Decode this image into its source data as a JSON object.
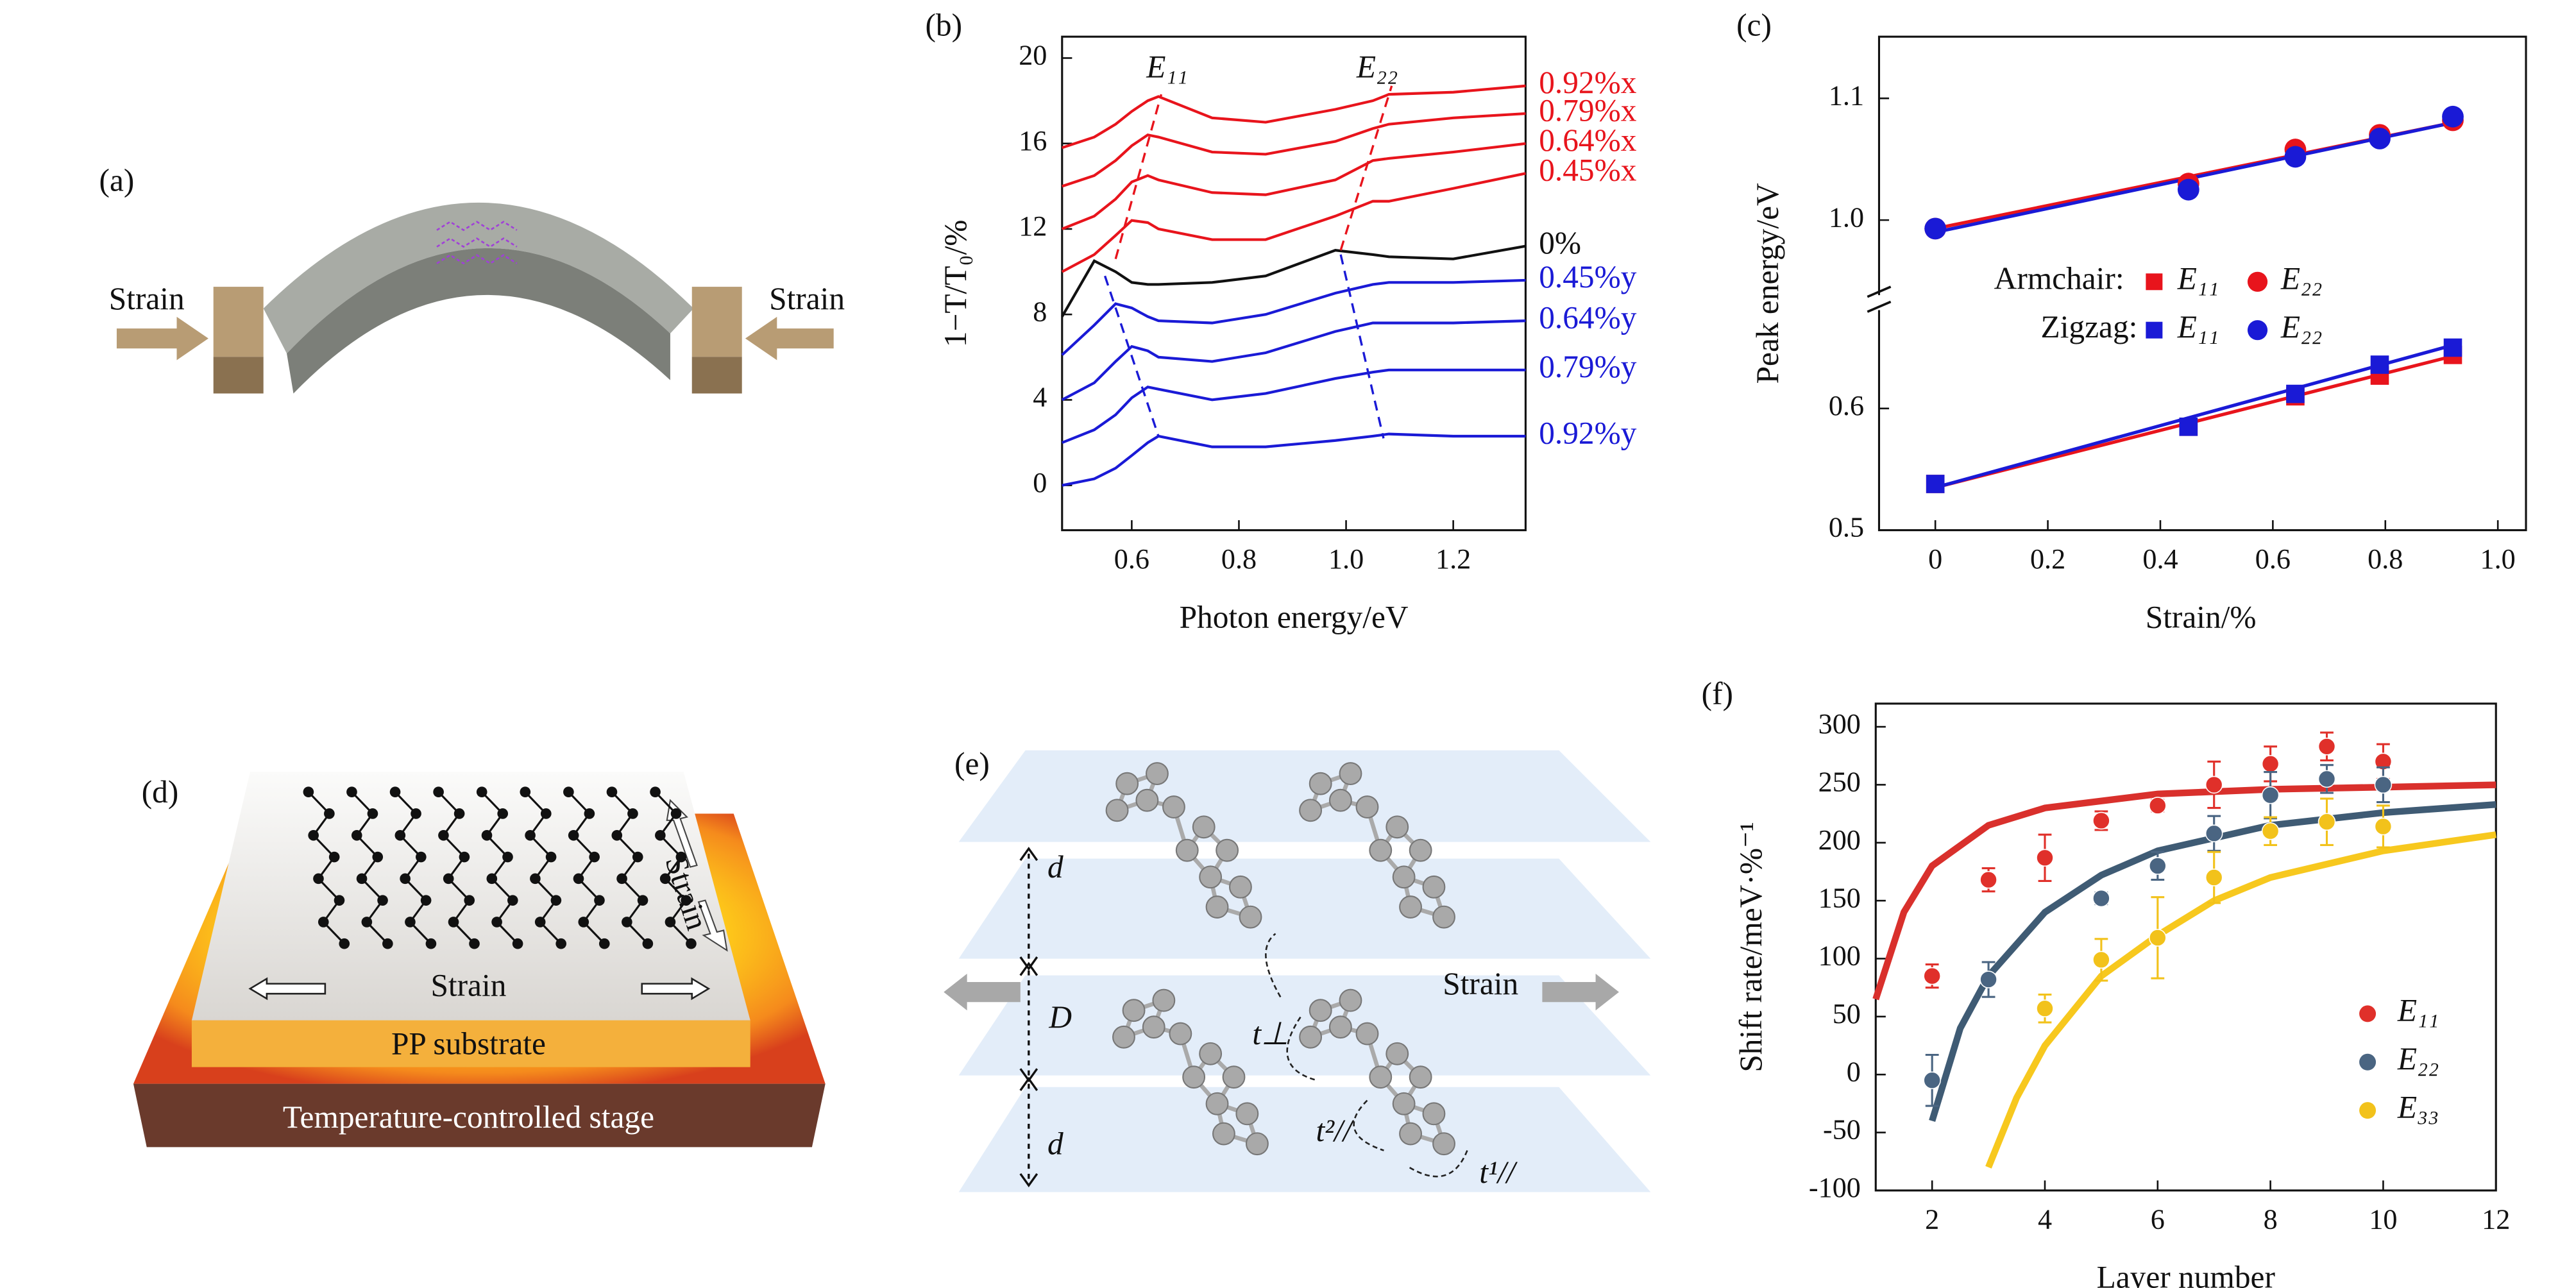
{
  "figure": {
    "panels": {
      "a": {
        "label": "(a)",
        "strain_left": "Strain",
        "strain_right": "Strain"
      },
      "d": {
        "label": "(d)",
        "strain_vertical": "Strain",
        "strain_horizontal": "Strain",
        "substrate": "PP substrate",
        "stage": "Temperature-controlled stage"
      },
      "e": {
        "label": "(e)",
        "d_top": "d",
        "D": "D",
        "d_bottom": "d",
        "t_perp": "t⊥",
        "strain": "Strain",
        "t2": "t²//",
        "t1": "t¹//"
      }
    }
  },
  "chart_data": [
    {
      "type": "line",
      "panel_label": "(b)",
      "xlabel": "Photon energy/eV",
      "ylabel": "1−T/T₀/%",
      "annotations": [
        "E₁₁",
        "E₂₂"
      ],
      "x": [
        0.47,
        0.53,
        0.57,
        0.6,
        0.63,
        0.65,
        0.75,
        0.85,
        0.98,
        1.05,
        1.08,
        1.2,
        1.335
      ],
      "series": [
        {
          "name": "0.92%x",
          "color": "#e8141c",
          "values": [
            15.8,
            16.3,
            16.9,
            17.5,
            18.0,
            18.2,
            17.2,
            17.0,
            17.6,
            18.0,
            18.3,
            18.4,
            18.7
          ]
        },
        {
          "name": "0.79%x",
          "color": "#e8141c",
          "values": [
            14.0,
            14.5,
            15.2,
            15.9,
            16.4,
            16.3,
            15.6,
            15.5,
            16.1,
            16.7,
            16.9,
            17.2,
            17.4
          ]
        },
        {
          "name": "0.64%x",
          "color": "#e8141c",
          "values": [
            12.0,
            12.6,
            13.4,
            14.2,
            14.5,
            14.3,
            13.7,
            13.6,
            14.3,
            15.2,
            15.3,
            15.6,
            16.0
          ]
        },
        {
          "name": "0.45%x",
          "color": "#e8141c",
          "values": [
            10.0,
            10.8,
            11.7,
            12.4,
            12.3,
            12.0,
            11.5,
            11.5,
            12.6,
            13.3,
            13.3,
            13.9,
            14.6
          ]
        },
        {
          "name": "0%",
          "color": "#111111",
          "values": [
            7.9,
            10.5,
            10.0,
            9.5,
            9.4,
            9.4,
            9.5,
            9.8,
            11.0,
            10.8,
            10.7,
            10.6,
            11.2
          ]
        },
        {
          "name": "0.45%y",
          "color": "#1a1ad6",
          "values": [
            6.1,
            7.5,
            8.5,
            8.3,
            7.9,
            7.7,
            7.6,
            8.0,
            9.0,
            9.4,
            9.5,
            9.5,
            9.6
          ]
        },
        {
          "name": "0.64%y",
          "color": "#1a1ad6",
          "values": [
            4.0,
            4.8,
            5.8,
            6.5,
            6.3,
            6.0,
            5.8,
            6.2,
            7.2,
            7.6,
            7.6,
            7.6,
            7.7
          ]
        },
        {
          "name": "0.79%y",
          "color": "#1a1ad6",
          "values": [
            2.0,
            2.6,
            3.3,
            4.1,
            4.6,
            4.5,
            4.0,
            4.3,
            5.0,
            5.3,
            5.4,
            5.4,
            5.4
          ]
        },
        {
          "name": "0.92%y",
          "color": "#1a1ad6",
          "values": [
            0,
            0.3,
            0.8,
            1.4,
            2.0,
            2.3,
            1.8,
            1.8,
            2.1,
            2.3,
            2.4,
            2.3,
            2.3
          ]
        }
      ],
      "peak_guides": [
        {
          "color": "#e8141c",
          "x": [
            0.57,
            0.655
          ],
          "y": [
            10.6,
            18.3
          ]
        },
        {
          "color": "#1a1ad6",
          "x": [
            0.55,
            0.65
          ],
          "y": [
            9.8,
            2.3
          ]
        },
        {
          "color": "#e8141c",
          "x": [
            0.99,
            1.085
          ],
          "y": [
            11.0,
            18.7
          ]
        },
        {
          "color": "#1a1ad6",
          "x": [
            0.99,
            1.07
          ],
          "y": [
            10.8,
            2.2
          ]
        }
      ],
      "xlim": [
        0.47,
        1.335
      ],
      "ylim": [
        -2.1,
        21
      ],
      "xticks": [
        0.6,
        0.8,
        {
          "value": 1,
          "label": "1.0"
        },
        1.2
      ],
      "yticks": [
        0,
        4,
        8,
        12,
        16,
        20
      ]
    },
    {
      "type": "scatter",
      "panel_label": "(c)",
      "xlabel": "Strain/%",
      "ylabel": "Peak energy/eV",
      "legend_groups": [
        "Armchair:",
        "Zigzag:"
      ],
      "x": [
        0,
        0.45,
        0.64,
        0.79,
        0.92
      ],
      "series": [
        {
          "name": "E₁₁",
          "group": 0,
          "marker": "square",
          "color": "#e8141c",
          "values": [
            0.538,
            0.585,
            0.61,
            0.627,
            0.644
          ]
        },
        {
          "name": "E₂₂",
          "group": 0,
          "marker": "circle",
          "color": "#e8141c",
          "values": [
            0.993,
            1.03,
            1.058,
            1.07,
            1.082
          ]
        },
        {
          "name": "E₁₁",
          "group": 1,
          "marker": "square",
          "color": "#1a1ad6",
          "values": [
            0.538,
            0.585,
            0.612,
            0.636,
            0.65
          ]
        },
        {
          "name": "E₂₂",
          "group": 1,
          "marker": "circle",
          "color": "#1a1ad6",
          "values": [
            0.993,
            1.025,
            1.052,
            1.067,
            1.085
          ]
        }
      ],
      "fits": [
        {
          "color": "#e8141c",
          "x": [
            0,
            0.92
          ],
          "y": [
            0.535,
            0.643
          ]
        },
        {
          "color": "#1a1ad6",
          "x": [
            0,
            0.92
          ],
          "y": [
            0.535,
            0.652
          ]
        },
        {
          "color": "#e8141c",
          "x": [
            0,
            0.92
          ],
          "y": [
            0.993,
            1.08
          ]
        },
        {
          "color": "#1a1ad6",
          "x": [
            0,
            0.92
          ],
          "y": [
            0.99,
            1.08
          ]
        }
      ],
      "xlim": [
        -0.1,
        1.05
      ],
      "ylim_segments": [
        [
          0.5,
          0.68
        ],
        [
          0.94,
          1.15
        ]
      ],
      "xticks": [
        0,
        0.2,
        0.4,
        0.6,
        0.8,
        {
          "value": 1,
          "label": "1.0"
        }
      ],
      "yticks": [
        0.5,
        0.6,
        {
          "value": 1,
          "label": "1.0"
        },
        1.1
      ]
    },
    {
      "type": "errorbar",
      "panel_label": "(f)",
      "xlabel": "Layer number",
      "ylabel": "Shift rate/meV·%⁻¹",
      "series": [
        {
          "name": "E₁₁",
          "color": "#e0302a",
          "x": [
            2,
            3,
            4,
            5,
            6,
            7,
            8,
            9,
            10
          ],
          "values": [
            85,
            168,
            187,
            219,
            232,
            250,
            268,
            283,
            270
          ],
          "errors": [
            10,
            10,
            20,
            8,
            5,
            20,
            15,
            12,
            15
          ]
        },
        {
          "name": "E₂₂",
          "color": "#4a6582",
          "x": [
            2,
            3,
            5,
            6,
            7,
            8,
            9,
            10
          ],
          "values": [
            -5,
            82,
            152,
            180,
            208,
            241,
            255,
            250
          ],
          "errors": [
            22,
            15,
            5,
            12,
            15,
            20,
            12,
            15
          ]
        },
        {
          "name": "E₃₃",
          "color": "#f2c21b",
          "x": [
            4,
            5,
            6,
            7,
            8,
            9,
            10
          ],
          "values": [
            57,
            99,
            118,
            170,
            210,
            218,
            214
          ],
          "errors": [
            12,
            18,
            35,
            22,
            12,
            20,
            18
          ]
        }
      ],
      "fits": [
        {
          "color": "#d9302c",
          "x": [
            1,
            1.5,
            2,
            3,
            4,
            6,
            8,
            10,
            12
          ],
          "y": [
            65,
            140,
            180,
            215,
            230,
            242,
            246,
            248,
            250
          ]
        },
        {
          "color": "#3f5b74",
          "x": [
            2,
            2.5,
            3,
            4,
            5,
            6,
            8,
            10,
            12
          ],
          "y": [
            -40,
            40,
            85,
            140,
            172,
            193,
            215,
            226,
            233
          ]
        },
        {
          "color": "#f7c81e",
          "x": [
            3,
            3.5,
            4,
            5,
            6,
            7,
            8,
            10,
            12
          ],
          "y": [
            -80,
            -20,
            25,
            85,
            120,
            150,
            170,
            193,
            207
          ]
        }
      ],
      "xlim": [
        1,
        12
      ],
      "ylim": [
        -100,
        320
      ],
      "xticks": [
        2,
        4,
        6,
        8,
        10,
        12
      ],
      "yticks": [
        -100,
        -50,
        0,
        50,
        100,
        150,
        200,
        250,
        300
      ]
    }
  ]
}
